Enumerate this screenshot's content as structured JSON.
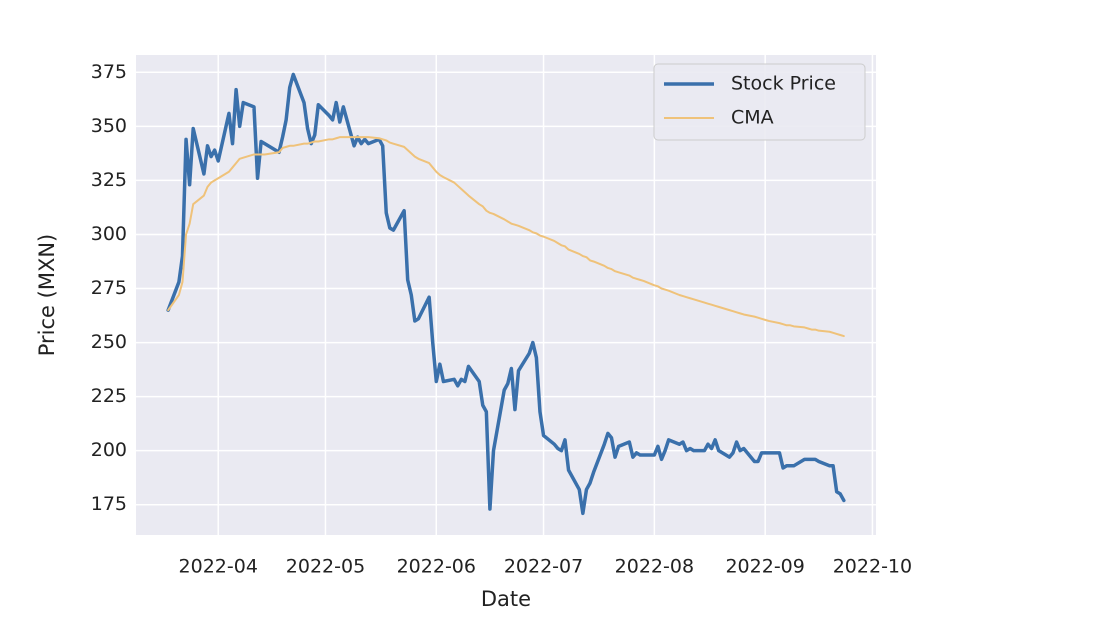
{
  "chart_data": {
    "type": "line",
    "xlabel": "Date",
    "ylabel": "Price (MXN)",
    "x": [
      "2022-03-18",
      "2022-03-21",
      "2022-03-22",
      "2022-03-23",
      "2022-03-24",
      "2022-03-25",
      "2022-03-28",
      "2022-03-29",
      "2022-03-30",
      "2022-03-31",
      "2022-04-01",
      "2022-04-04",
      "2022-04-05",
      "2022-04-06",
      "2022-04-07",
      "2022-04-08",
      "2022-04-11",
      "2022-04-12",
      "2022-04-13",
      "2022-04-14",
      "2022-04-18",
      "2022-04-19",
      "2022-04-20",
      "2022-04-21",
      "2022-04-22",
      "2022-04-25",
      "2022-04-26",
      "2022-04-27",
      "2022-04-28",
      "2022-04-29",
      "2022-05-02",
      "2022-05-03",
      "2022-05-04",
      "2022-05-05",
      "2022-05-06",
      "2022-05-09",
      "2022-05-10",
      "2022-05-11",
      "2022-05-12",
      "2022-05-13",
      "2022-05-16",
      "2022-05-17",
      "2022-05-18",
      "2022-05-19",
      "2022-05-20",
      "2022-05-23",
      "2022-05-24",
      "2022-05-25",
      "2022-05-26",
      "2022-05-27",
      "2022-05-30",
      "2022-05-31",
      "2022-06-01",
      "2022-06-02",
      "2022-06-03",
      "2022-06-06",
      "2022-06-07",
      "2022-06-08",
      "2022-06-09",
      "2022-06-10",
      "2022-06-13",
      "2022-06-14",
      "2022-06-15",
      "2022-06-16",
      "2022-06-17",
      "2022-06-20",
      "2022-06-21",
      "2022-06-22",
      "2022-06-23",
      "2022-06-24",
      "2022-06-27",
      "2022-06-28",
      "2022-06-29",
      "2022-06-30",
      "2022-07-01",
      "2022-07-04",
      "2022-07-05",
      "2022-07-06",
      "2022-07-07",
      "2022-07-08",
      "2022-07-11",
      "2022-07-12",
      "2022-07-13",
      "2022-07-14",
      "2022-07-15",
      "2022-07-18",
      "2022-07-19",
      "2022-07-20",
      "2022-07-21",
      "2022-07-22",
      "2022-07-25",
      "2022-07-26",
      "2022-07-27",
      "2022-07-28",
      "2022-07-29",
      "2022-08-01",
      "2022-08-02",
      "2022-08-03",
      "2022-08-04",
      "2022-08-05",
      "2022-08-08",
      "2022-08-09",
      "2022-08-10",
      "2022-08-11",
      "2022-08-12",
      "2022-08-15",
      "2022-08-16",
      "2022-08-17",
      "2022-08-18",
      "2022-08-19",
      "2022-08-22",
      "2022-08-23",
      "2022-08-24",
      "2022-08-25",
      "2022-08-26",
      "2022-08-29",
      "2022-08-30",
      "2022-08-31",
      "2022-09-01",
      "2022-09-02",
      "2022-09-05",
      "2022-09-06",
      "2022-09-07",
      "2022-09-08",
      "2022-09-09",
      "2022-09-12",
      "2022-09-13",
      "2022-09-14",
      "2022-09-15",
      "2022-09-16",
      "2022-09-19",
      "2022-09-20",
      "2022-09-21",
      "2022-09-22",
      "2022-09-23"
    ],
    "series": [
      {
        "name": "Stock Price",
        "color": "#3a70ab",
        "width": 3.5,
        "values": [
          265,
          278,
          290,
          344,
          323,
          349,
          328,
          341,
          336,
          339,
          334,
          356,
          342,
          367,
          350,
          361,
          359,
          326,
          343,
          342,
          338,
          345,
          353,
          368,
          374,
          361,
          349,
          342,
          346,
          360,
          355,
          353,
          361,
          352,
          359,
          341,
          345,
          342,
          344,
          342,
          344,
          341,
          310,
          303,
          302,
          311,
          279,
          272,
          260,
          261,
          271,
          250,
          232,
          240,
          232,
          233,
          230,
          233,
          232,
          239,
          232,
          221,
          218,
          173,
          200,
          228,
          231,
          238,
          219,
          237,
          245,
          250,
          243,
          218,
          207,
          203,
          201,
          200,
          205,
          191,
          182,
          171,
          182,
          185,
          190,
          203,
          208,
          206,
          197,
          202,
          204,
          197,
          199,
          198,
          198,
          198,
          202,
          196,
          200,
          205,
          203,
          204,
          200,
          201,
          200,
          200,
          203,
          201,
          205,
          200,
          197,
          199,
          204,
          200,
          201,
          195,
          195,
          199,
          199,
          199,
          199,
          192,
          193,
          193,
          193,
          196,
          196,
          196,
          196,
          195,
          193,
          193,
          181,
          180,
          177
        ]
      },
      {
        "name": "CMA",
        "color": "#efc27a",
        "width": 2,
        "values": [
          265,
          272,
          278,
          300,
          305,
          314,
          318,
          322,
          324,
          325,
          326,
          329,
          331,
          333,
          335,
          335.5,
          337,
          337,
          337,
          337,
          338,
          340,
          340.5,
          341,
          341,
          342,
          342,
          342.5,
          343,
          343,
          344,
          344,
          344.5,
          345,
          345,
          345,
          345,
          345,
          345,
          345,
          344.5,
          344,
          343.5,
          342.5,
          342,
          340.5,
          339,
          337.5,
          336,
          335,
          333,
          331,
          329,
          327.5,
          326.5,
          324,
          322.5,
          321,
          319.5,
          318,
          314,
          313,
          311,
          310,
          309.5,
          307,
          306,
          305,
          304.5,
          304,
          302,
          301,
          300.5,
          299.5,
          299,
          297,
          296,
          295,
          294.5,
          293,
          291,
          290,
          289.5,
          288,
          287.5,
          285.5,
          284.5,
          284,
          283,
          282.5,
          281,
          280,
          279.5,
          279,
          278.5,
          276.5,
          276,
          275,
          274.5,
          274,
          272,
          271.5,
          271,
          270.5,
          270,
          268.5,
          268,
          267.5,
          267,
          266.5,
          265,
          264.5,
          264,
          263.5,
          263,
          262,
          261.5,
          261,
          260.5,
          260,
          259,
          258.5,
          258,
          258,
          257.5,
          257,
          256.5,
          256,
          256,
          255.5,
          255,
          254.5,
          254,
          253.5,
          253
        ]
      }
    ],
    "xlim": [
      "2022-03-09",
      "2022-10-02"
    ],
    "xticks": [
      {
        "value": "2022-04-01",
        "label": "2022-04"
      },
      {
        "value": "2022-05-01",
        "label": "2022-05"
      },
      {
        "value": "2022-06-01",
        "label": "2022-06"
      },
      {
        "value": "2022-07-01",
        "label": "2022-07"
      },
      {
        "value": "2022-08-01",
        "label": "2022-08"
      },
      {
        "value": "2022-09-01",
        "label": "2022-09"
      },
      {
        "value": "2022-10-01",
        "label": "2022-10"
      }
    ],
    "ylim": [
      161,
      383
    ],
    "yticks": [
      175,
      200,
      225,
      250,
      275,
      300,
      325,
      350,
      375
    ],
    "grid": true,
    "legend": "upper right"
  }
}
